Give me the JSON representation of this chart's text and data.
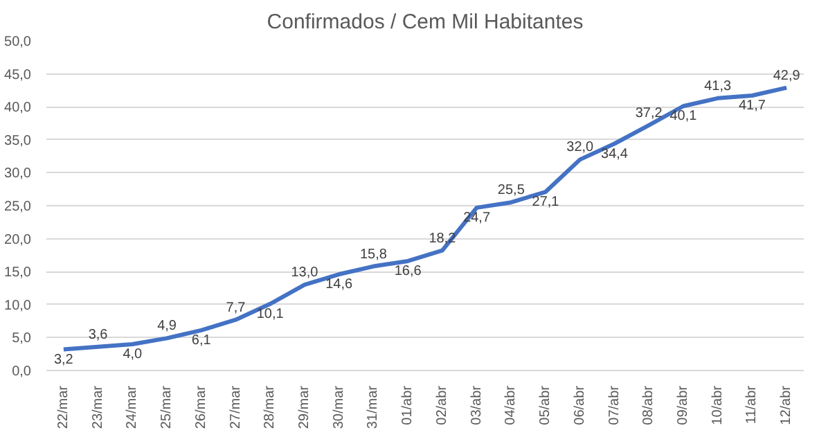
{
  "chart_data": {
    "type": "line",
    "title": "Confirmados / Cem Mil Habitantes",
    "categories": [
      "22/mar",
      "23/mar",
      "24/mar",
      "25/mar",
      "26/mar",
      "27/mar",
      "28/mar",
      "29/mar",
      "30/mar",
      "31/mar",
      "01/abr",
      "02/abr",
      "03/abr",
      "04/abr",
      "05/abr",
      "06/abr",
      "07/abr",
      "08/abr",
      "09/abr",
      "10/abr",
      "11/abr",
      "12/abr"
    ],
    "series": [
      {
        "color": "#4472c4",
        "values": [
          3.2,
          3.6,
          4.0,
          4.9,
          6.1,
          7.7,
          10.1,
          13.0,
          14.6,
          15.8,
          16.6,
          18.2,
          24.7,
          25.5,
          27.1,
          32.0,
          34.4,
          37.2,
          40.1,
          41.3,
          41.7,
          42.9
        ],
        "value_labels": [
          "3,2",
          "3,6",
          "4,0",
          "4,9",
          "6,1",
          "7,7",
          "10,1",
          "13,0",
          "14,6",
          "15,8",
          "16,6",
          "18,2",
          "24,7",
          "25,5",
          "27,1",
          "32,0",
          "34,4",
          "37,2",
          "40,1",
          "41,3",
          "41,7",
          "42,9"
        ]
      }
    ],
    "ylim": [
      0,
      50
    ],
    "yticks": [
      {
        "value": 0,
        "label": "0,0"
      },
      {
        "value": 5,
        "label": "5,0"
      },
      {
        "value": 10,
        "label": "10,0"
      },
      {
        "value": 15,
        "label": "15,0"
      },
      {
        "value": 20,
        "label": "20,0"
      },
      {
        "value": 25,
        "label": "25,0"
      },
      {
        "value": 30,
        "label": "30,0"
      },
      {
        "value": 35,
        "label": "35,0"
      },
      {
        "value": 40,
        "label": "40,0"
      },
      {
        "value": 45,
        "label": "45,0"
      },
      {
        "value": 50,
        "label": "50,0"
      }
    ],
    "grid": "y",
    "marker": "none",
    "line_style": "solid"
  }
}
